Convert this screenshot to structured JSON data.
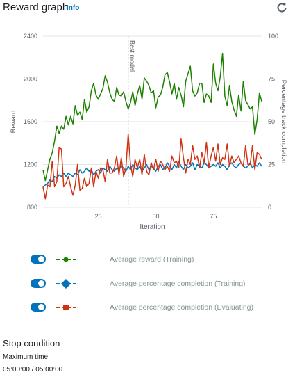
{
  "header": {
    "title": "Reward graph",
    "info_label": "Info",
    "refresh_icon": "refresh-icon"
  },
  "chart_data": {
    "type": "line",
    "xlabel": "Iteration",
    "ylabel": "Reward",
    "y2label": "Percentage track completion",
    "xlim": [
      1,
      96
    ],
    "ylim": [
      800,
      2400
    ],
    "y2lim": [
      0,
      100
    ],
    "xticks": [
      "25",
      "50",
      "75"
    ],
    "yticks": [
      "800",
      "1200",
      "1600",
      "2000",
      "2400"
    ],
    "y2ticks": [
      "0",
      "25",
      "50",
      "75",
      "100"
    ],
    "annotation": {
      "label": "Best model",
      "x": 38
    },
    "grid": true,
    "colors": {
      "reward": "#1d8102",
      "completion_training": "#0073bb",
      "completion_evaluating": "#d13212"
    },
    "series": [
      {
        "name": "Average reward (Training)",
        "axis": "left",
        "x": [
          1,
          2,
          3,
          4,
          5,
          6,
          7,
          8,
          9,
          10,
          11,
          12,
          13,
          14,
          15,
          16,
          17,
          18,
          19,
          20,
          21,
          22,
          23,
          24,
          25,
          26,
          27,
          28,
          29,
          30,
          31,
          32,
          33,
          34,
          35,
          36,
          37,
          38,
          39,
          40,
          41,
          42,
          43,
          44,
          45,
          46,
          47,
          48,
          49,
          50,
          51,
          52,
          53,
          54,
          55,
          56,
          57,
          58,
          59,
          60,
          61,
          62,
          63,
          64,
          65,
          66,
          67,
          68,
          69,
          70,
          71,
          72,
          73,
          74,
          75,
          76,
          77,
          78,
          79,
          80,
          81,
          82,
          83,
          84,
          85,
          86,
          87,
          88,
          89,
          90,
          91,
          92,
          93,
          94,
          95,
          96
        ],
        "y": [
          1150,
          1050,
          1150,
          1250,
          1310,
          1420,
          1560,
          1490,
          1560,
          1530,
          1650,
          1570,
          1650,
          1580,
          1750,
          1660,
          1690,
          1620,
          1810,
          1690,
          1740,
          1890,
          1960,
          1850,
          1810,
          1860,
          1910,
          2030,
          1970,
          1870,
          1810,
          1790,
          1920,
          1850,
          1840,
          1880,
          1790,
          1720,
          1780,
          1880,
          1750,
          1860,
          1940,
          1810,
          2010,
          1980,
          1940,
          1870,
          1890,
          1730,
          1830,
          1850,
          1920,
          2040,
          2060,
          1970,
          1860,
          1960,
          1810,
          1920,
          1850,
          1740,
          1980,
          2050,
          2120,
          1890,
          1840,
          1870,
          1960,
          1960,
          1780,
          1860,
          1840,
          1780,
          2140,
          1960,
          1890,
          2020,
          2240,
          1840,
          1750,
          1940,
          1790,
          1710,
          1650,
          1850,
          1700,
          1980,
          1800,
          1760,
          1720,
          1740,
          1480,
          1620,
          1870,
          1790
        ]
      },
      {
        "name": "Average percentage completion (Training)",
        "axis": "right",
        "x": [
          1,
          2,
          3,
          4,
          5,
          6,
          7,
          8,
          9,
          10,
          11,
          12,
          13,
          14,
          15,
          16,
          17,
          18,
          19,
          20,
          21,
          22,
          23,
          24,
          25,
          26,
          27,
          28,
          29,
          30,
          31,
          32,
          33,
          34,
          35,
          36,
          37,
          38,
          39,
          40,
          41,
          42,
          43,
          44,
          45,
          46,
          47,
          48,
          49,
          50,
          51,
          52,
          53,
          54,
          55,
          56,
          57,
          58,
          59,
          60,
          61,
          62,
          63,
          64,
          65,
          66,
          67,
          68,
          69,
          70,
          71,
          72,
          73,
          74,
          75,
          76,
          77,
          78,
          79,
          80,
          81,
          82,
          83,
          84,
          85,
          86,
          87,
          88,
          89,
          90,
          91,
          92,
          93,
          94,
          95,
          96
        ],
        "y": [
          12,
          13,
          14,
          16,
          15,
          18,
          17,
          19,
          18,
          20,
          18,
          20,
          19,
          18,
          20,
          19,
          22,
          20,
          21,
          23,
          21,
          22,
          19,
          21,
          22,
          20,
          23,
          22,
          21,
          24,
          22,
          21,
          23,
          22,
          24,
          23,
          21,
          24,
          22,
          25,
          23,
          22,
          24,
          21,
          23,
          25,
          22,
          24,
          23,
          21,
          24,
          25,
          22,
          23,
          26,
          24,
          22,
          25,
          23,
          27,
          24,
          22,
          25,
          23,
          24,
          26,
          22,
          25,
          24,
          23,
          26,
          25,
          23,
          24,
          25,
          24,
          26,
          23,
          25,
          24,
          22,
          25,
          26,
          24,
          23,
          25,
          26,
          24,
          23,
          24,
          26,
          23,
          25,
          24,
          26,
          24
        ]
      },
      {
        "name": "Average percentage completion (Evaluating)",
        "axis": "right",
        "x": [
          1,
          2,
          3,
          4,
          5,
          6,
          7,
          8,
          9,
          10,
          11,
          12,
          13,
          14,
          15,
          16,
          17,
          18,
          19,
          20,
          21,
          22,
          23,
          24,
          25,
          26,
          27,
          28,
          29,
          30,
          31,
          32,
          33,
          34,
          35,
          36,
          37,
          38,
          39,
          40,
          41,
          42,
          43,
          44,
          45,
          46,
          47,
          48,
          49,
          50,
          51,
          52,
          53,
          54,
          55,
          56,
          57,
          58,
          59,
          60,
          61,
          62,
          63,
          64,
          65,
          66,
          67,
          68,
          69,
          70,
          71,
          72,
          73,
          74,
          75,
          76,
          77,
          78,
          79,
          80,
          81,
          82,
          83,
          84,
          85,
          86,
          87,
          88,
          89,
          90,
          91,
          92,
          93,
          94,
          95,
          96
        ],
        "y": [
          12,
          5,
          13,
          12,
          27,
          12,
          15,
          35,
          34,
          12,
          14,
          18,
          12,
          7,
          13,
          25,
          10,
          11,
          17,
          12,
          14,
          23,
          12,
          21,
          17,
          23,
          22,
          15,
          28,
          20,
          20,
          23,
          30,
          19,
          29,
          18,
          23,
          43,
          25,
          18,
          28,
          23,
          28,
          19,
          31,
          21,
          19,
          26,
          22,
          28,
          21,
          27,
          25,
          22,
          24,
          21,
          30,
          26,
          27,
          23,
          40,
          29,
          20,
          28,
          25,
          36,
          28,
          30,
          23,
          32,
          26,
          38,
          23,
          30,
          35,
          27,
          37,
          25,
          29,
          28,
          37,
          24,
          30,
          26,
          28,
          30,
          26,
          24,
          36,
          25,
          25,
          36,
          22,
          32,
          31,
          28
        ]
      }
    ]
  },
  "legend": [
    {
      "label": "Average reward (Training)",
      "enabled": true,
      "marker": "circle",
      "color": "#1d8102"
    },
    {
      "label": "Average percentage completion (Training)",
      "enabled": true,
      "marker": "diamond",
      "color": "#0073bb"
    },
    {
      "label": "Average percentage completion (Evaluating)",
      "enabled": true,
      "marker": "square",
      "color": "#d13212"
    }
  ],
  "stop_condition": {
    "title": "Stop condition",
    "label": "Maximum time",
    "value": "05:00:00 / 05:00:00"
  }
}
